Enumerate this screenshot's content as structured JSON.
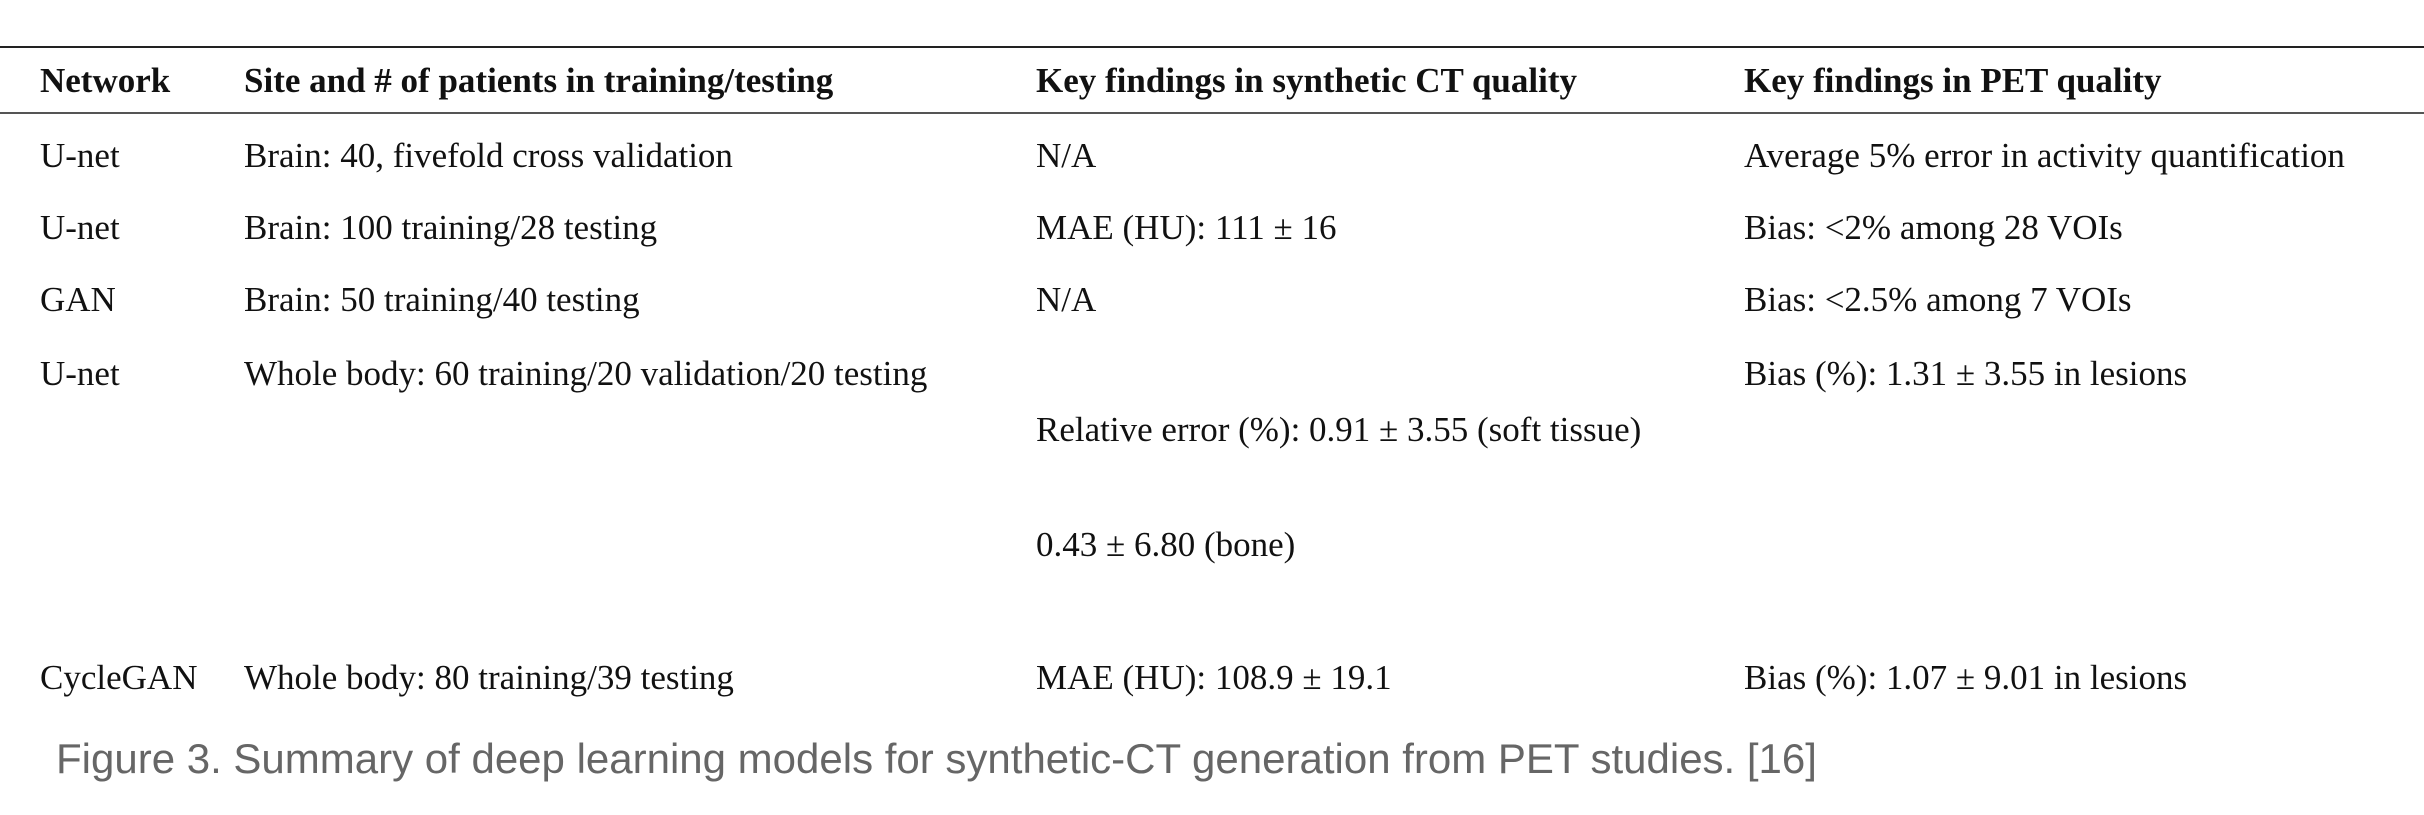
{
  "table": {
    "headers": [
      "Network",
      "Site and # of patients in training/testing",
      "Key findings in synthetic CT quality",
      "Key findings in PET quality"
    ],
    "rows": [
      {
        "network": "U-net",
        "site": "Brain: 40, fivefold cross validation",
        "ct_quality": "N/A",
        "pet_quality": "Average 5% error in activity quantification"
      },
      {
        "network": "U-net",
        "site": "Brain: 100 training/28 testing",
        "ct_quality": "MAE (HU): 111 ± 16",
        "pet_quality": "Bias: <2% among 28 VOIs"
      },
      {
        "network": "GAN",
        "site": "Brain: 50 training/40 testing",
        "ct_quality": "N/A",
        "pet_quality": "Bias: <2.5% among 7 VOIs"
      },
      {
        "network": "U-net",
        "site": "Whole body: 60 training/20 validation/20 testing",
        "ct_quality_line1": "Relative error (%): 0.91 ± 3.55 (soft tissue)",
        "ct_quality_line2": "0.43 ± 6.80 (bone)",
        "pet_quality": "Bias (%): 1.31 ± 3.55 in lesions"
      },
      {
        "network": "CycleGAN",
        "site": "Whole body: 80 training/39 testing",
        "ct_quality": "MAE (HU): 108.9 ± 19.1",
        "pet_quality": "Bias (%): 1.07 ± 9.01 in lesions"
      }
    ]
  },
  "caption": "Figure 3. Summary of deep learning models for synthetic-CT generation from PET studies. [16]"
}
